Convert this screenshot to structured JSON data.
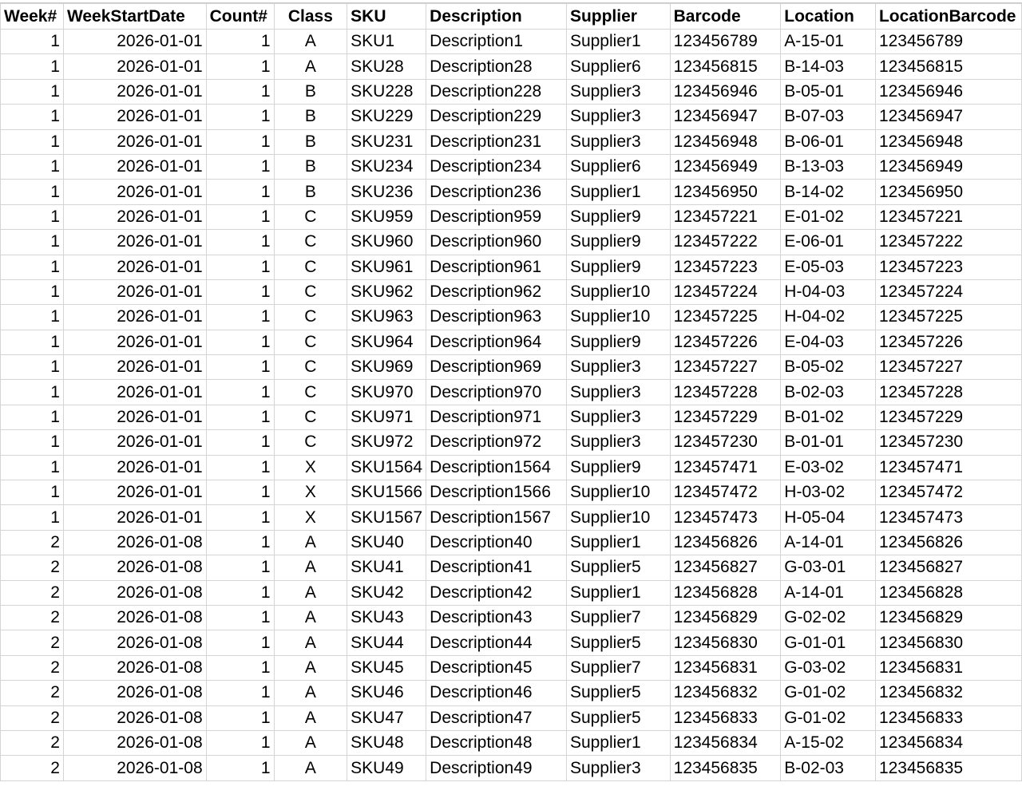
{
  "headers": [
    "Week#",
    "WeekStartDate",
    "Count#",
    "Class",
    "SKU",
    "Description",
    "Supplier",
    "Barcode",
    "Location",
    "LocationBarcode"
  ],
  "rows": [
    [
      "1",
      "2026-01-01",
      "1",
      "A",
      "SKU1",
      "Description1",
      "Supplier1",
      "123456789",
      "A-15-01",
      "123456789"
    ],
    [
      "1",
      "2026-01-01",
      "1",
      "A",
      "SKU28",
      "Description28",
      "Supplier6",
      "123456815",
      "B-14-03",
      "123456815"
    ],
    [
      "1",
      "2026-01-01",
      "1",
      "B",
      "SKU228",
      "Description228",
      "Supplier3",
      "123456946",
      "B-05-01",
      "123456946"
    ],
    [
      "1",
      "2026-01-01",
      "1",
      "B",
      "SKU229",
      "Description229",
      "Supplier3",
      "123456947",
      "B-07-03",
      "123456947"
    ],
    [
      "1",
      "2026-01-01",
      "1",
      "B",
      "SKU231",
      "Description231",
      "Supplier3",
      "123456948",
      "B-06-01",
      "123456948"
    ],
    [
      "1",
      "2026-01-01",
      "1",
      "B",
      "SKU234",
      "Description234",
      "Supplier6",
      "123456949",
      "B-13-03",
      "123456949"
    ],
    [
      "1",
      "2026-01-01",
      "1",
      "B",
      "SKU236",
      "Description236",
      "Supplier1",
      "123456950",
      "B-14-02",
      "123456950"
    ],
    [
      "1",
      "2026-01-01",
      "1",
      "C",
      "SKU959",
      "Description959",
      "Supplier9",
      "123457221",
      "E-01-02",
      "123457221"
    ],
    [
      "1",
      "2026-01-01",
      "1",
      "C",
      "SKU960",
      "Description960",
      "Supplier9",
      "123457222",
      "E-06-01",
      "123457222"
    ],
    [
      "1",
      "2026-01-01",
      "1",
      "C",
      "SKU961",
      "Description961",
      "Supplier9",
      "123457223",
      "E-05-03",
      "123457223"
    ],
    [
      "1",
      "2026-01-01",
      "1",
      "C",
      "SKU962",
      "Description962",
      "Supplier10",
      "123457224",
      "H-04-03",
      "123457224"
    ],
    [
      "1",
      "2026-01-01",
      "1",
      "C",
      "SKU963",
      "Description963",
      "Supplier10",
      "123457225",
      "H-04-02",
      "123457225"
    ],
    [
      "1",
      "2026-01-01",
      "1",
      "C",
      "SKU964",
      "Description964",
      "Supplier9",
      "123457226",
      "E-04-03",
      "123457226"
    ],
    [
      "1",
      "2026-01-01",
      "1",
      "C",
      "SKU969",
      "Description969",
      "Supplier3",
      "123457227",
      "B-05-02",
      "123457227"
    ],
    [
      "1",
      "2026-01-01",
      "1",
      "C",
      "SKU970",
      "Description970",
      "Supplier3",
      "123457228",
      "B-02-03",
      "123457228"
    ],
    [
      "1",
      "2026-01-01",
      "1",
      "C",
      "SKU971",
      "Description971",
      "Supplier3",
      "123457229",
      "B-01-02",
      "123457229"
    ],
    [
      "1",
      "2026-01-01",
      "1",
      "C",
      "SKU972",
      "Description972",
      "Supplier3",
      "123457230",
      "B-01-01",
      "123457230"
    ],
    [
      "1",
      "2026-01-01",
      "1",
      "X",
      "SKU1564",
      "Description1564",
      "Supplier9",
      "123457471",
      "E-03-02",
      "123457471"
    ],
    [
      "1",
      "2026-01-01",
      "1",
      "X",
      "SKU1566",
      "Description1566",
      "Supplier10",
      "123457472",
      "H-03-02",
      "123457472"
    ],
    [
      "1",
      "2026-01-01",
      "1",
      "X",
      "SKU1567",
      "Description1567",
      "Supplier10",
      "123457473",
      "H-05-04",
      "123457473"
    ],
    [
      "2",
      "2026-01-08",
      "1",
      "A",
      "SKU40",
      "Description40",
      "Supplier1",
      "123456826",
      "A-14-01",
      "123456826"
    ],
    [
      "2",
      "2026-01-08",
      "1",
      "A",
      "SKU41",
      "Description41",
      "Supplier5",
      "123456827",
      "G-03-01",
      "123456827"
    ],
    [
      "2",
      "2026-01-08",
      "1",
      "A",
      "SKU42",
      "Description42",
      "Supplier1",
      "123456828",
      "A-14-01",
      "123456828"
    ],
    [
      "2",
      "2026-01-08",
      "1",
      "A",
      "SKU43",
      "Description43",
      "Supplier7",
      "123456829",
      "G-02-02",
      "123456829"
    ],
    [
      "2",
      "2026-01-08",
      "1",
      "A",
      "SKU44",
      "Description44",
      "Supplier5",
      "123456830",
      "G-01-01",
      "123456830"
    ],
    [
      "2",
      "2026-01-08",
      "1",
      "A",
      "SKU45",
      "Description45",
      "Supplier7",
      "123456831",
      "G-03-02",
      "123456831"
    ],
    [
      "2",
      "2026-01-08",
      "1",
      "A",
      "SKU46",
      "Description46",
      "Supplier5",
      "123456832",
      "G-01-02",
      "123456832"
    ],
    [
      "2",
      "2026-01-08",
      "1",
      "A",
      "SKU47",
      "Description47",
      "Supplier5",
      "123456833",
      "G-01-02",
      "123456833"
    ],
    [
      "2",
      "2026-01-08",
      "1",
      "A",
      "SKU48",
      "Description48",
      "Supplier1",
      "123456834",
      "A-15-02",
      "123456834"
    ],
    [
      "2",
      "2026-01-08",
      "1",
      "A",
      "SKU49",
      "Description49",
      "Supplier3",
      "123456835",
      "B-02-03",
      "123456835"
    ]
  ]
}
